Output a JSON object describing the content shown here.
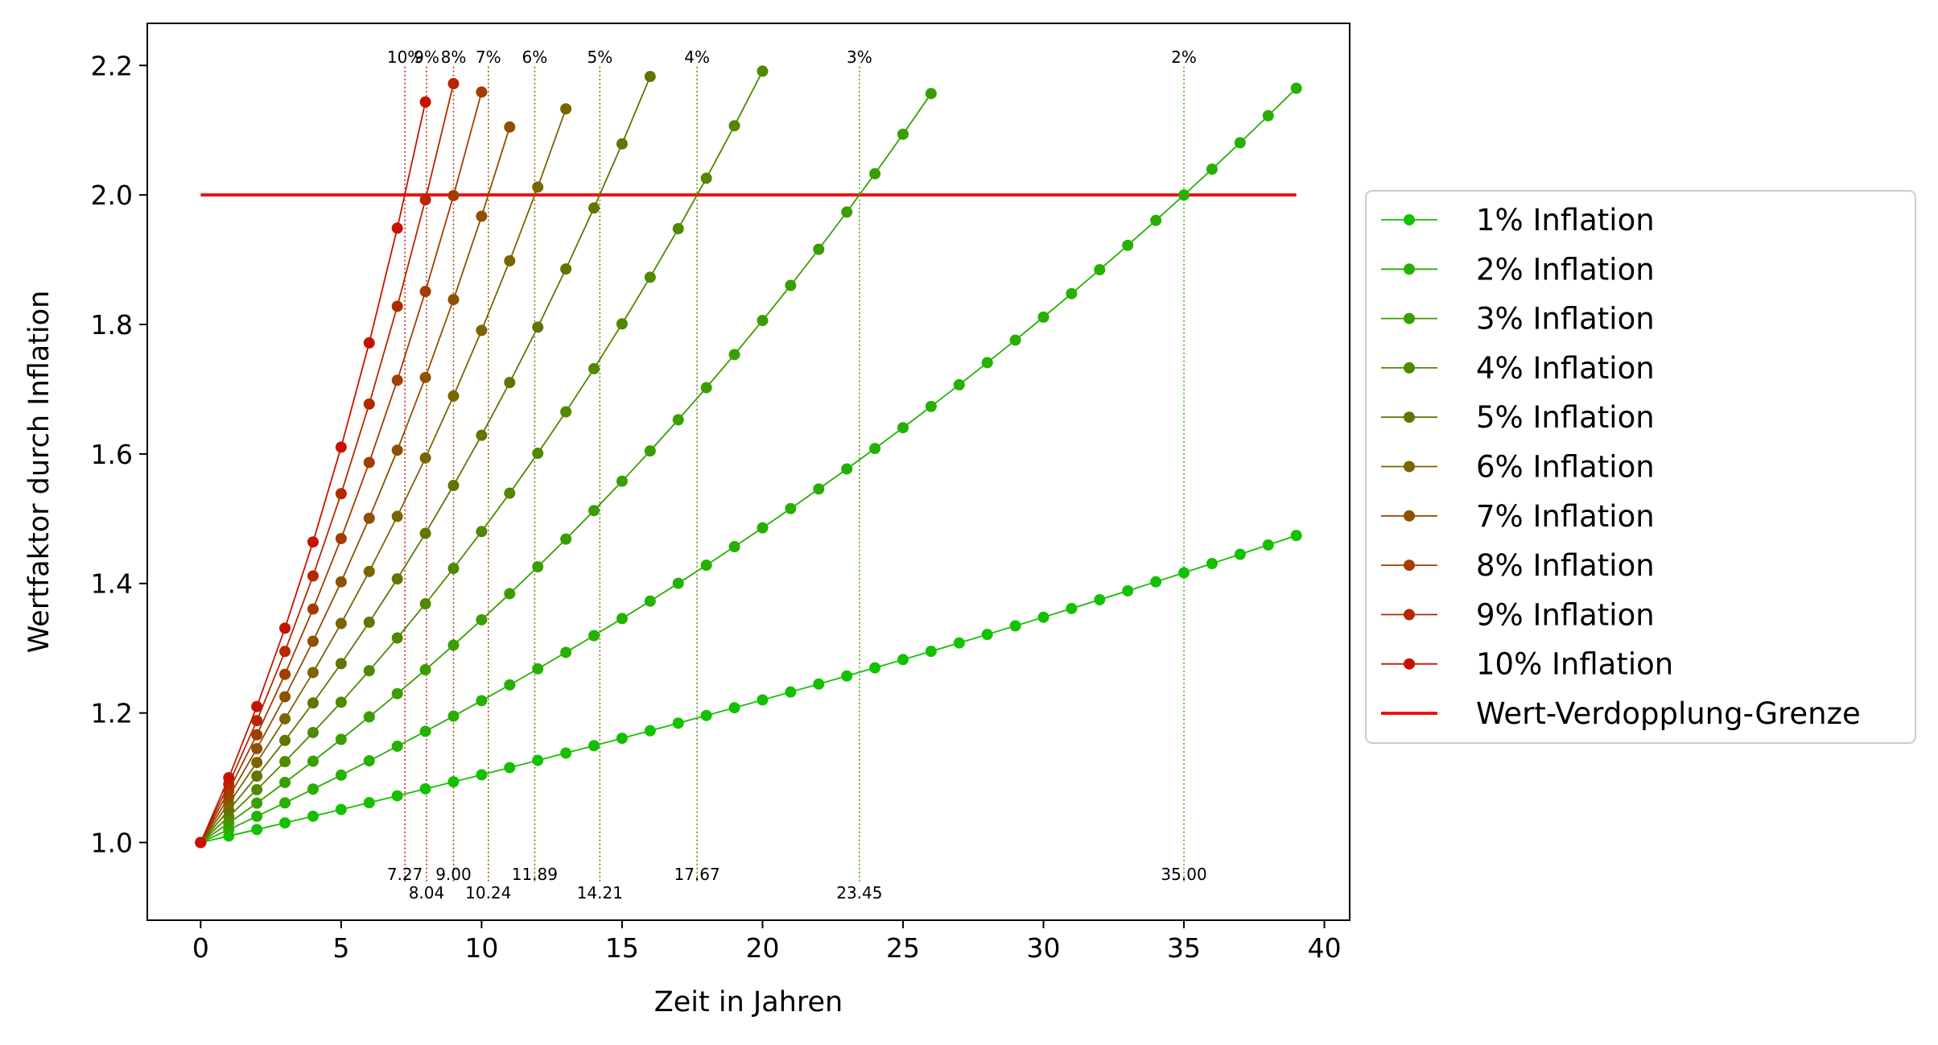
{
  "chart_data": {
    "type": "line",
    "xlabel": "Zeit in Jahren",
    "ylabel": "Wertfaktor durch Inflation",
    "xlim": [
      -1.9,
      40.9
    ],
    "ylim": [
      0.88,
      2.265
    ],
    "xticks": [
      0,
      5,
      10,
      15,
      20,
      25,
      30,
      35,
      40
    ],
    "yticks": [
      1.0,
      1.2,
      1.4,
      1.6,
      1.8,
      2.0,
      2.2
    ],
    "ytick_labels": [
      "1.0",
      "1.2",
      "1.4",
      "1.6",
      "1.8",
      "2.0",
      "2.2"
    ],
    "legend_position": "outside-right",
    "grid": false,
    "series": [
      {
        "name": "1% Inflation",
        "rate": 0.01,
        "years": 39,
        "color": "#14c100"
      },
      {
        "name": "2% Inflation",
        "rate": 0.02,
        "years": 39,
        "color": "#26b000"
      },
      {
        "name": "3% Inflation",
        "rate": 0.03,
        "years": 26,
        "color": "#3a9e00"
      },
      {
        "name": "4% Inflation",
        "rate": 0.04,
        "years": 20,
        "color": "#508800"
      },
      {
        "name": "5% Inflation",
        "rate": 0.05,
        "years": 16,
        "color": "#637400"
      },
      {
        "name": "6% Inflation",
        "rate": 0.06,
        "years": 13,
        "color": "#7a6500"
      },
      {
        "name": "7% Inflation",
        "rate": 0.07,
        "years": 11,
        "color": "#8f5000"
      },
      {
        "name": "8% Inflation",
        "rate": 0.08,
        "years": 10,
        "color": "#a33d00"
      },
      {
        "name": "9% Inflation",
        "rate": 0.09,
        "years": 9,
        "color": "#b52800"
      },
      {
        "name": "10% Inflation",
        "rate": 0.1,
        "years": 8,
        "color": "#c81200"
      }
    ],
    "threshold": {
      "name": "Wert-Verdopplung-Grenze",
      "y": 2.0,
      "x_start": 0,
      "x_end": 39,
      "color": "#ee1111"
    },
    "doubling_markers": [
      {
        "rate_label": "10%",
        "x": 7.27,
        "value_label": "7.27",
        "color": "#c81200"
      },
      {
        "rate_label": "9%",
        "x": 8.04,
        "value_label": "8.04",
        "color": "#b52800"
      },
      {
        "rate_label": "8%",
        "x": 9.0,
        "value_label": "9.00",
        "color": "#a33d00"
      },
      {
        "rate_label": "7%",
        "x": 10.24,
        "value_label": "10.24",
        "color": "#8f5000"
      },
      {
        "rate_label": "6%",
        "x": 11.89,
        "value_label": "11.89",
        "color": "#7a6500"
      },
      {
        "rate_label": "5%",
        "x": 14.21,
        "value_label": "14.21",
        "color": "#637400"
      },
      {
        "rate_label": "4%",
        "x": 17.67,
        "value_label": "17.67",
        "color": "#508800"
      },
      {
        "rate_label": "3%",
        "x": 23.45,
        "value_label": "23.45",
        "color": "#3a9e00"
      },
      {
        "rate_label": "2%",
        "x": 35.0,
        "value_label": "35.00",
        "color": "#26b000"
      }
    ]
  }
}
